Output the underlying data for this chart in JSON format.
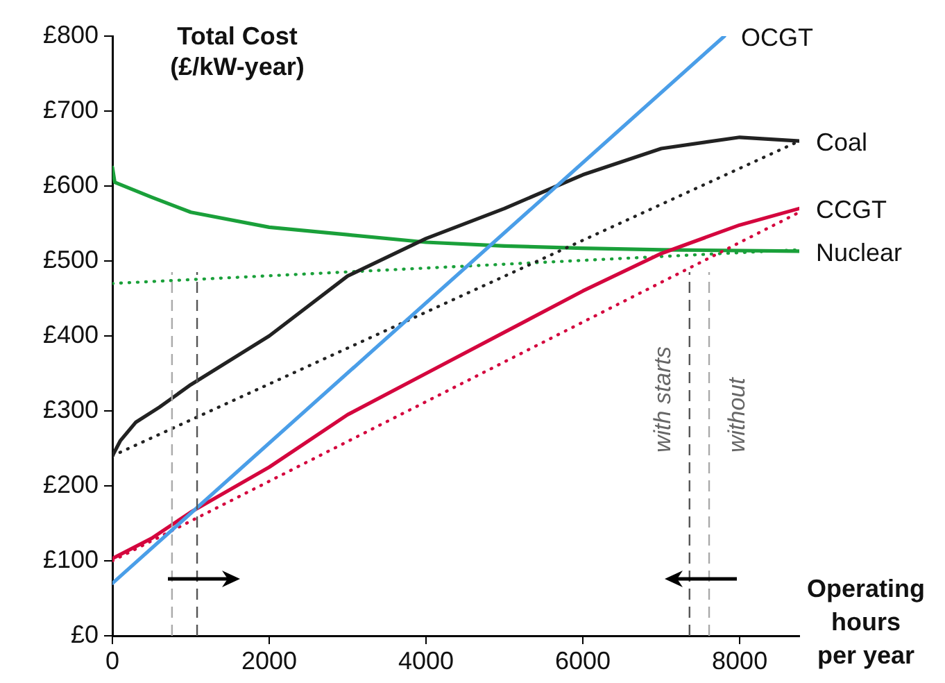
{
  "chart_data": {
    "type": "line",
    "title": "Total Cost\n(£/kW-year)",
    "xlabel": "Operating hours per year",
    "xlim": [
      0,
      8760
    ],
    "xticks": [
      0,
      2000,
      4000,
      6000,
      8000
    ],
    "ylim": [
      0,
      800
    ],
    "yticks": [
      {
        "value": 0,
        "label": "£0"
      },
      {
        "value": 100,
        "label": "£100"
      },
      {
        "value": 200,
        "label": "£200"
      },
      {
        "value": 300,
        "label": "£300"
      },
      {
        "value": 400,
        "label": "£400"
      },
      {
        "value": 500,
        "label": "£500"
      },
      {
        "value": 600,
        "label": "£600"
      },
      {
        "value": 700,
        "label": "£700"
      },
      {
        "value": 800,
        "label": "£800"
      }
    ],
    "grid": false,
    "legend": false,
    "marker": "none",
    "series": [
      {
        "name": "OCGT",
        "color": "#4a9ee8",
        "line_style": "solid",
        "x": [
          0,
          7805
        ],
        "values": [
          70,
          800
        ]
      },
      {
        "name": "Coal",
        "color": "#222222",
        "line_style": "solid",
        "x": [
          0,
          100,
          300,
          600,
          1000,
          2000,
          3000,
          3200,
          4000,
          5000,
          6000,
          7000,
          8000,
          8760
        ],
        "values": [
          240,
          260,
          285,
          305,
          335,
          400,
          480,
          490,
          530,
          570,
          615,
          650,
          665,
          660
        ]
      },
      {
        "color": "#222222",
        "line_style": "dotted",
        "x": [
          0,
          8760
        ],
        "values": [
          240,
          660
        ]
      },
      {
        "name": "CCGT",
        "color": "#d4063e",
        "line_style": "solid",
        "x": [
          0,
          500,
          1000,
          2000,
          3000,
          4000,
          5000,
          6000,
          7000,
          8000,
          8760
        ],
        "values": [
          103,
          130,
          165,
          225,
          295,
          350,
          405,
          460,
          510,
          548,
          570
        ]
      },
      {
        "color": "#d4063e",
        "line_style": "dotted",
        "x": [
          0,
          8760
        ],
        "values": [
          100,
          565
        ]
      },
      {
        "name": "Nuclear",
        "color": "#1aa03a",
        "line_style": "solid",
        "x": [
          0,
          30,
          500,
          1000,
          2000,
          3000,
          4000,
          5000,
          6000,
          7000,
          8760
        ],
        "values": [
          625,
          605,
          585,
          565,
          545,
          535,
          525,
          520,
          517,
          515,
          513
        ]
      },
      {
        "color": "#1aa03a",
        "line_style": "dotted",
        "x": [
          0,
          8760
        ],
        "values": [
          470,
          515
        ]
      }
    ],
    "ref_lines": [
      {
        "axis": "x",
        "value": 760,
        "color": "#aaaaaa",
        "line_style": "dashed"
      },
      {
        "axis": "x",
        "value": 1080,
        "color": "#555555",
        "line_style": "dashed"
      },
      {
        "axis": "x",
        "value": 7360,
        "label": "with starts",
        "color": "#555555",
        "line_style": "dashed"
      },
      {
        "axis": "x",
        "value": 7610,
        "label": "without",
        "color": "#aaaaaa",
        "line_style": "dashed"
      }
    ]
  }
}
